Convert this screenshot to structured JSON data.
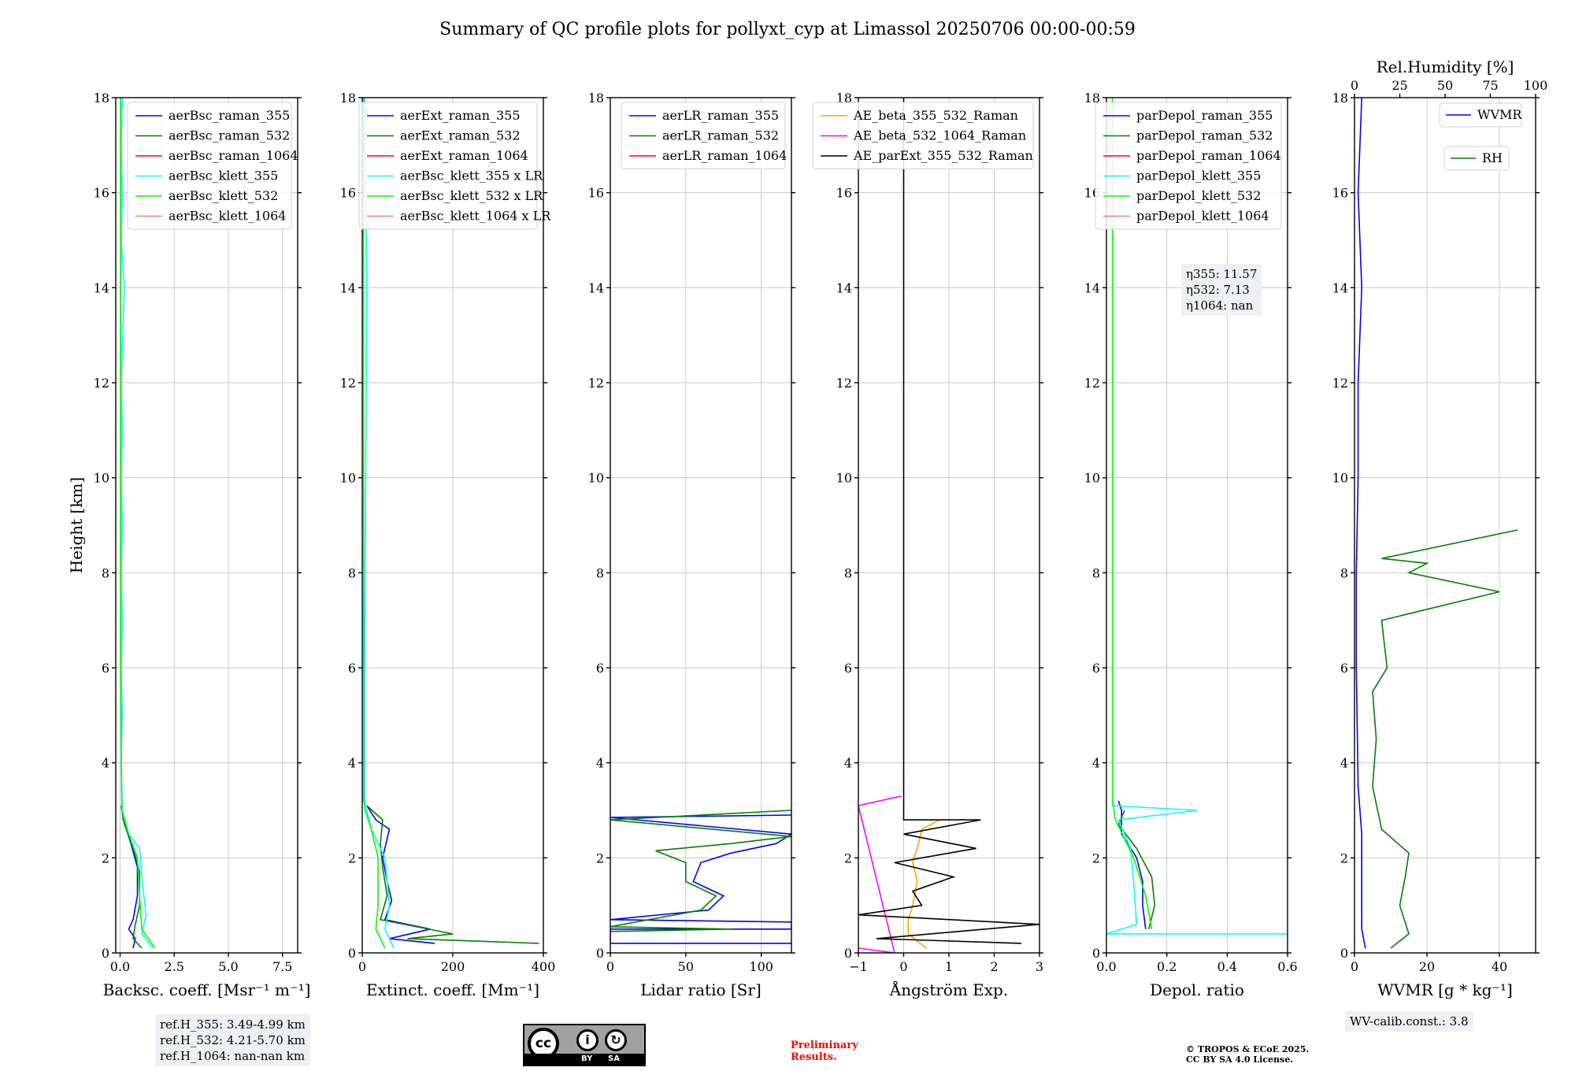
{
  "figure_title": "Summary of QC profile plots for pollyxt_cyp at Limassol 20250706 00:00-00:59",
  "footer": {
    "cc_label_by": "BY",
    "cc_label_sa": "SA",
    "preliminary": "Preliminary\nResults.",
    "copyright": "© TROPOS & ECoE 2025.\nCC BY SA 4.0 License."
  },
  "chart_data": [
    {
      "type": "line",
      "xlabel": "Backsc. coeff. [Msr⁻¹ m⁻¹]",
      "ylabel": "Height [km]",
      "xlim": [
        -0.2,
        8.2
      ],
      "ylim": [
        0,
        18
      ],
      "xticks": [
        0,
        2.5,
        5,
        7.5
      ],
      "xticklabels": [
        "0.0",
        "2.5",
        "5.0",
        "7.5"
      ],
      "yticks": [
        0,
        2,
        4,
        6,
        8,
        10,
        12,
        14,
        16,
        18
      ],
      "legend_location": "top-right",
      "annotation": "ref.H_355: 3.49-4.99 km\nref.H_532: 4.21-5.70 km\nref.H_1064: nan-nan km",
      "series": [
        {
          "name": "aerBsc_raman_355",
          "color": "#0000ff",
          "points": [
            [
              0.6,
              0.1
            ],
            [
              0.7,
              0.3
            ],
            [
              0.4,
              0.5
            ],
            [
              0.6,
              0.7
            ],
            [
              0.8,
              1.2
            ],
            [
              0.8,
              1.8
            ],
            [
              0.5,
              2.3
            ],
            [
              0.15,
              2.8
            ],
            [
              0.05,
              3.1
            ]
          ]
        },
        {
          "name": "aerBsc_raman_532",
          "color": "#008000",
          "points": [
            [
              1.0,
              0.1
            ],
            [
              0.6,
              0.3
            ],
            [
              0.7,
              0.6
            ],
            [
              0.9,
              1.0
            ],
            [
              0.9,
              1.7
            ],
            [
              0.55,
              2.3
            ],
            [
              0.2,
              2.7
            ],
            [
              0.05,
              3.1
            ]
          ]
        },
        {
          "name": "aerBsc_raman_1064",
          "color": "#ff0000",
          "points": []
        },
        {
          "name": "aerBsc_klett_355",
          "color": "#00ffff",
          "points": [
            [
              1.5,
              0.1
            ],
            [
              1.0,
              0.4
            ],
            [
              1.2,
              0.8
            ],
            [
              1.0,
              1.6
            ],
            [
              0.9,
              2.2
            ],
            [
              0.4,
              2.5
            ],
            [
              0.1,
              3.0
            ],
            [
              0.05,
              4.0
            ],
            [
              0.1,
              5.0
            ],
            [
              0.05,
              6.0
            ],
            [
              0.1,
              7.0
            ],
            [
              0.05,
              8.0
            ],
            [
              0.1,
              9.0
            ],
            [
              0.05,
              10.0
            ],
            [
              0.1,
              11.0
            ],
            [
              0.05,
              12.0
            ],
            [
              0.2,
              14.0
            ],
            [
              0.05,
              15.0
            ],
            [
              0.1,
              16.0
            ],
            [
              0.05,
              17.0
            ],
            [
              0.1,
              18.0
            ]
          ]
        },
        {
          "name": "aerBsc_klett_532",
          "color": "#00ff00",
          "points": [
            [
              1.6,
              0.1
            ],
            [
              1.0,
              0.5
            ],
            [
              0.9,
              1.2
            ],
            [
              0.8,
              2.0
            ],
            [
              0.4,
              2.5
            ],
            [
              0.08,
              3.0
            ],
            [
              0.03,
              6.0
            ],
            [
              0.03,
              12.0
            ],
            [
              0.03,
              18.0
            ]
          ]
        },
        {
          "name": "aerBsc_klett_1064",
          "color": "#fa8072",
          "points": []
        }
      ]
    },
    {
      "type": "line",
      "xlabel": "Extinct. coeff. [Mm⁻¹]",
      "xlim": [
        0,
        400
      ],
      "ylim": [
        0,
        18
      ],
      "xticks": [
        0,
        200,
        400
      ],
      "xticklabels": [
        "0",
        "200",
        "400"
      ],
      "yticks": [
        0,
        2,
        4,
        6,
        8,
        10,
        12,
        14,
        16,
        18
      ],
      "legend_location": "top-right",
      "series": [
        {
          "name": "aerExt_raman_355",
          "color": "#0000ff",
          "points": [
            [
              160,
              0.2
            ],
            [
              60,
              0.3
            ],
            [
              150,
              0.5
            ],
            [
              50,
              0.7
            ],
            [
              65,
              1.1
            ],
            [
              55,
              1.5
            ],
            [
              45,
              2.0
            ],
            [
              60,
              2.6
            ],
            [
              30,
              2.8
            ],
            [
              10,
              3.1
            ]
          ]
        },
        {
          "name": "aerExt_raman_532",
          "color": "#008000",
          "points": [
            [
              390,
              0.2
            ],
            [
              100,
              0.3
            ],
            [
              200,
              0.4
            ],
            [
              40,
              0.7
            ],
            [
              55,
              1.2
            ],
            [
              45,
              1.8
            ],
            [
              40,
              2.3
            ],
            [
              45,
              2.8
            ],
            [
              10,
              3.1
            ]
          ]
        },
        {
          "name": "aerExt_raman_1064",
          "color": "#ff0000",
          "points": []
        },
        {
          "name": "aerBsc_klett_355 x LR",
          "color": "#00ffff",
          "points": [
            [
              70,
              0.1
            ],
            [
              50,
              0.5
            ],
            [
              60,
              1.0
            ],
            [
              50,
              2.0
            ],
            [
              20,
              2.6
            ],
            [
              5,
              3.0
            ],
            [
              5,
              6.0
            ],
            [
              10,
              14.0
            ],
            [
              5,
              18.0
            ]
          ]
        },
        {
          "name": "aerBsc_klett_532 x LR",
          "color": "#00ff00",
          "points": [
            [
              50,
              0.1
            ],
            [
              30,
              0.5
            ],
            [
              35,
              1.0
            ],
            [
              35,
              2.0
            ],
            [
              15,
              2.8
            ],
            [
              3,
              3.2
            ],
            [
              3,
              18.0
            ]
          ]
        },
        {
          "name": "aerBsc_klett_1064 x LR",
          "color": "#fa8072",
          "points": []
        }
      ]
    },
    {
      "type": "line",
      "xlabel": "Lidar ratio [Sr]",
      "xlim": [
        0,
        120
      ],
      "ylim": [
        0,
        18
      ],
      "xticks": [
        0,
        50,
        100
      ],
      "xticklabels": [
        "0",
        "50",
        "100"
      ],
      "yticks": [
        0,
        2,
        4,
        6,
        8,
        10,
        12,
        14,
        16,
        18
      ],
      "legend_location": "top-right",
      "series": [
        {
          "name": "aerLR_raman_355",
          "color": "#0000ff",
          "points": [
            [
              120,
              0.2
            ],
            [
              0,
              0.2
            ],
            [
              0,
              0.5
            ],
            [
              120,
              0.5
            ],
            [
              120,
              0.65
            ],
            [
              0,
              0.7
            ],
            [
              65,
              0.9
            ],
            [
              75,
              1.2
            ],
            [
              55,
              1.5
            ],
            [
              60,
              1.9
            ],
            [
              80,
              2.1
            ],
            [
              110,
              2.3
            ],
            [
              120,
              2.5
            ],
            [
              0,
              2.85
            ],
            [
              120,
              2.9
            ]
          ]
        },
        {
          "name": "aerLR_raman_532",
          "color": "#008000",
          "points": [
            [
              0,
              0.45
            ],
            [
              80,
              0.5
            ],
            [
              0,
              0.55
            ],
            [
              60,
              0.9
            ],
            [
              70,
              1.2
            ],
            [
              50,
              1.5
            ],
            [
              50,
              1.9
            ],
            [
              30,
              2.15
            ],
            [
              80,
              2.3
            ],
            [
              120,
              2.45
            ],
            [
              0,
              2.8
            ],
            [
              120,
              3.0
            ]
          ]
        },
        {
          "name": "aerLR_raman_1064",
          "color": "#ff0000",
          "points": []
        }
      ]
    },
    {
      "type": "line",
      "xlabel": "Ångström Exp.",
      "xlim": [
        -1,
        3
      ],
      "ylim": [
        0,
        18
      ],
      "xticks": [
        -1,
        0,
        1,
        2,
        3
      ],
      "xticklabels": [
        "−1",
        "0",
        "1",
        "2",
        "3"
      ],
      "yticks": [
        0,
        2,
        4,
        6,
        8,
        10,
        12,
        14,
        16,
        18
      ],
      "legend_location": "top-right",
      "series": [
        {
          "name": "AE_beta_355_532_Raman",
          "color": "#ffa500",
          "points": [
            [
              0.5,
              0.1
            ],
            [
              0.1,
              0.4
            ],
            [
              0.1,
              0.7
            ],
            [
              0.2,
              1.0
            ],
            [
              0.3,
              1.5
            ],
            [
              0.2,
              1.9
            ],
            [
              0.3,
              2.2
            ],
            [
              0.4,
              2.6
            ],
            [
              0.8,
              2.8
            ]
          ]
        },
        {
          "name": "AE_beta_532_1064_Raman",
          "color": "#ff00ff",
          "points": [
            [
              -1,
              0.1
            ],
            [
              -0.2,
              0.0
            ],
            [
              -1,
              3.1
            ],
            [
              -0.05,
              3.3
            ]
          ]
        },
        {
          "name": "AE_parExt_355_532_Raman",
          "color": "#000000",
          "points": [
            [
              2.6,
              0.2
            ],
            [
              -0.6,
              0.3
            ],
            [
              3.0,
              0.6
            ],
            [
              -1,
              0.8
            ],
            [
              0.4,
              1.0
            ],
            [
              0.2,
              1.3
            ],
            [
              1.1,
              1.6
            ],
            [
              -0.2,
              1.9
            ],
            [
              1.6,
              2.2
            ],
            [
              0.0,
              2.5
            ],
            [
              1.7,
              2.8
            ],
            [
              0.0,
              2.8
            ],
            [
              0.0,
              18.0
            ]
          ]
        }
      ]
    },
    {
      "type": "line",
      "xlabel": "Depol. ratio",
      "xlim": [
        0,
        0.6
      ],
      "ylim": [
        0,
        18
      ],
      "xticks": [
        0,
        0.2,
        0.4,
        0.6
      ],
      "xticklabels": [
        "0.0",
        "0.2",
        "0.4",
        "0.6"
      ],
      "yticks": [
        0,
        2,
        4,
        6,
        8,
        10,
        12,
        14,
        16,
        18
      ],
      "legend_location": "top-right",
      "annotation": "η355: 11.57\nη532: 7.13\nη1064: nan",
      "series": [
        {
          "name": "parDepol_raman_355",
          "color": "#0000ff",
          "points": [
            [
              0.13,
              0.5
            ],
            [
              0.12,
              1.0
            ],
            [
              0.12,
              1.5
            ],
            [
              0.1,
              2.0
            ],
            [
              0.05,
              2.5
            ],
            [
              0.05,
              3.0
            ],
            [
              0.04,
              3.2
            ]
          ]
        },
        {
          "name": "parDepol_raman_532",
          "color": "#008000",
          "points": [
            [
              0.14,
              0.5
            ],
            [
              0.16,
              1.0
            ],
            [
              0.15,
              1.6
            ],
            [
              0.1,
              2.2
            ],
            [
              0.04,
              2.7
            ],
            [
              0.06,
              3.0
            ]
          ]
        },
        {
          "name": "parDepol_raman_1064",
          "color": "#ff0000",
          "points": []
        },
        {
          "name": "parDepol_klett_355",
          "color": "#00ffff",
          "points": [
            [
              0.6,
              0.4
            ],
            [
              0.0,
              0.4
            ],
            [
              0.1,
              0.6
            ],
            [
              0.09,
              1.5
            ],
            [
              0.08,
              2.2
            ],
            [
              0.04,
              2.8
            ],
            [
              0.3,
              3.0
            ],
            [
              0.02,
              3.1
            ],
            [
              0.02,
              18.0
            ]
          ]
        },
        {
          "name": "parDepol_klett_532",
          "color": "#00ff00",
          "points": [
            [
              0.15,
              0.5
            ],
            [
              0.13,
              1.2
            ],
            [
              0.09,
              2.0
            ],
            [
              0.03,
              2.8
            ],
            [
              0.02,
              3.2
            ],
            [
              0.02,
              18.0
            ]
          ]
        },
        {
          "name": "parDepol_klett_1064",
          "color": "#fa8072",
          "points": []
        }
      ]
    },
    {
      "type": "line",
      "xlabel": "WVMR [g * kg⁻¹]",
      "xlabel_top": "Rel.Humidity [%]",
      "xlim": [
        0,
        50
      ],
      "ylim": [
        0,
        18
      ],
      "xticks": [
        0,
        20,
        40
      ],
      "xticklabels": [
        "0",
        "20",
        "40"
      ],
      "xlim_top": [
        0,
        100
      ],
      "xticks_top": [
        0,
        25,
        50,
        75,
        100
      ],
      "xticklabels_top": [
        "0",
        "25",
        "50",
        "75",
        "100"
      ],
      "yticks": [
        0,
        2,
        4,
        6,
        8,
        10,
        12,
        14,
        16,
        18
      ],
      "legend_location": "top-right",
      "annotation": "WV-calib.const.: 3.8",
      "series": [
        {
          "name": "WVMR",
          "color": "#0000ff",
          "axis": "bottom",
          "points": [
            [
              3,
              0.1
            ],
            [
              2,
              0.5
            ],
            [
              2,
              1.5
            ],
            [
              2,
              2.5
            ],
            [
              1,
              3.5
            ],
            [
              0.5,
              6.0
            ],
            [
              0.5,
              8.0
            ],
            [
              1,
              10.0
            ],
            [
              1,
              12.0
            ],
            [
              2,
              14.0
            ],
            [
              1,
              16.0
            ],
            [
              2,
              18.0
            ]
          ]
        },
        {
          "name": "RH",
          "color": "#008000",
          "axis": "top",
          "points": [
            [
              20,
              0.1
            ],
            [
              30,
              0.4
            ],
            [
              25,
              1.0
            ],
            [
              28,
              1.6
            ],
            [
              30,
              2.1
            ],
            [
              15,
              2.6
            ],
            [
              10,
              3.5
            ],
            [
              12,
              4.5
            ],
            [
              10,
              5.5
            ],
            [
              18,
              6.0
            ],
            [
              15,
              7.0
            ],
            [
              80,
              7.6
            ],
            [
              30,
              8.0
            ],
            [
              40,
              8.2
            ],
            [
              15,
              8.3
            ],
            [
              90,
              8.9
            ]
          ]
        }
      ]
    }
  ]
}
